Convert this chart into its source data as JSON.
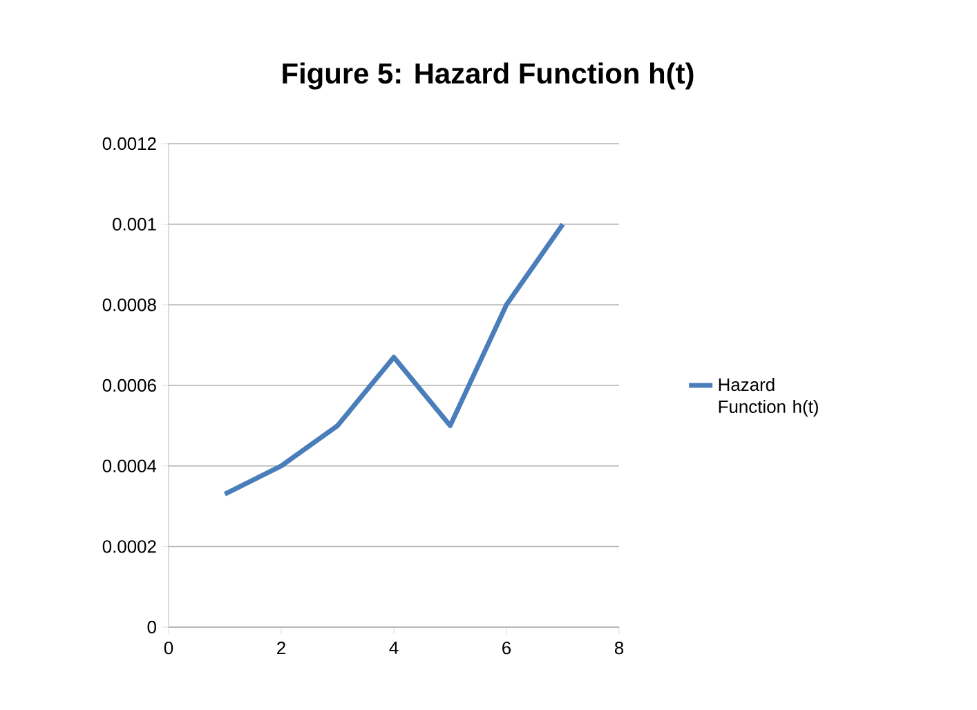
{
  "chart_data": {
    "type": "line",
    "title": "Figure 5: Hazard Function h(t)",
    "x": [
      1,
      2,
      3,
      4,
      5,
      6,
      7
    ],
    "series": [
      {
        "name": "Hazard Function h(t)",
        "color": "#4a7ebb",
        "values": [
          0.00033,
          0.0004,
          0.0005,
          0.00067,
          0.0005,
          0.0008,
          0.001
        ]
      }
    ],
    "xlim": [
      0,
      8
    ],
    "xticks": [
      0,
      2,
      4,
      6,
      8
    ],
    "ylim": [
      0,
      0.0012
    ],
    "yticks": [
      0,
      0.0002,
      0.0004,
      0.0006,
      0.0008,
      0.001,
      0.0012
    ],
    "grid": "y",
    "legend": "right",
    "marker": "none",
    "line_style": "solid"
  }
}
